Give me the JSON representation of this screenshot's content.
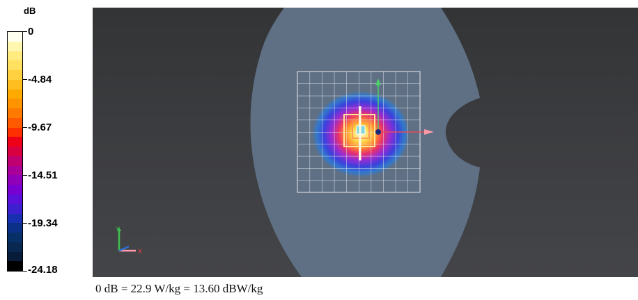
{
  "legend": {
    "unit": "dB",
    "ticks": [
      "0",
      "-4.84",
      "-9.67",
      "-14.51",
      "-19.34",
      "-24.18"
    ],
    "colors": [
      "#fffff0",
      "#fff6b0",
      "#ffeb80",
      "#ffe060",
      "#ffd040",
      "#ffbe20",
      "#ffaa00",
      "#ff9400",
      "#ff7a00",
      "#ff5a00",
      "#ff3000",
      "#ee0018",
      "#d80040",
      "#c00070",
      "#a80098",
      "#9000b8",
      "#7800d0",
      "#5a10d8",
      "#3c20d0",
      "#1830b0",
      "#0a3088",
      "#083068",
      "#082850",
      "#061c38",
      "#000000"
    ]
  },
  "viewport": {
    "background": "#3a3b3d",
    "phantom_color": "#5f7085",
    "grid_color": "#e8e8f0",
    "axes": {
      "y_label": "Y",
      "x_label": "X"
    }
  },
  "caption": "0 dB = 22.9 W/kg = 13.60 dBW/kg"
}
